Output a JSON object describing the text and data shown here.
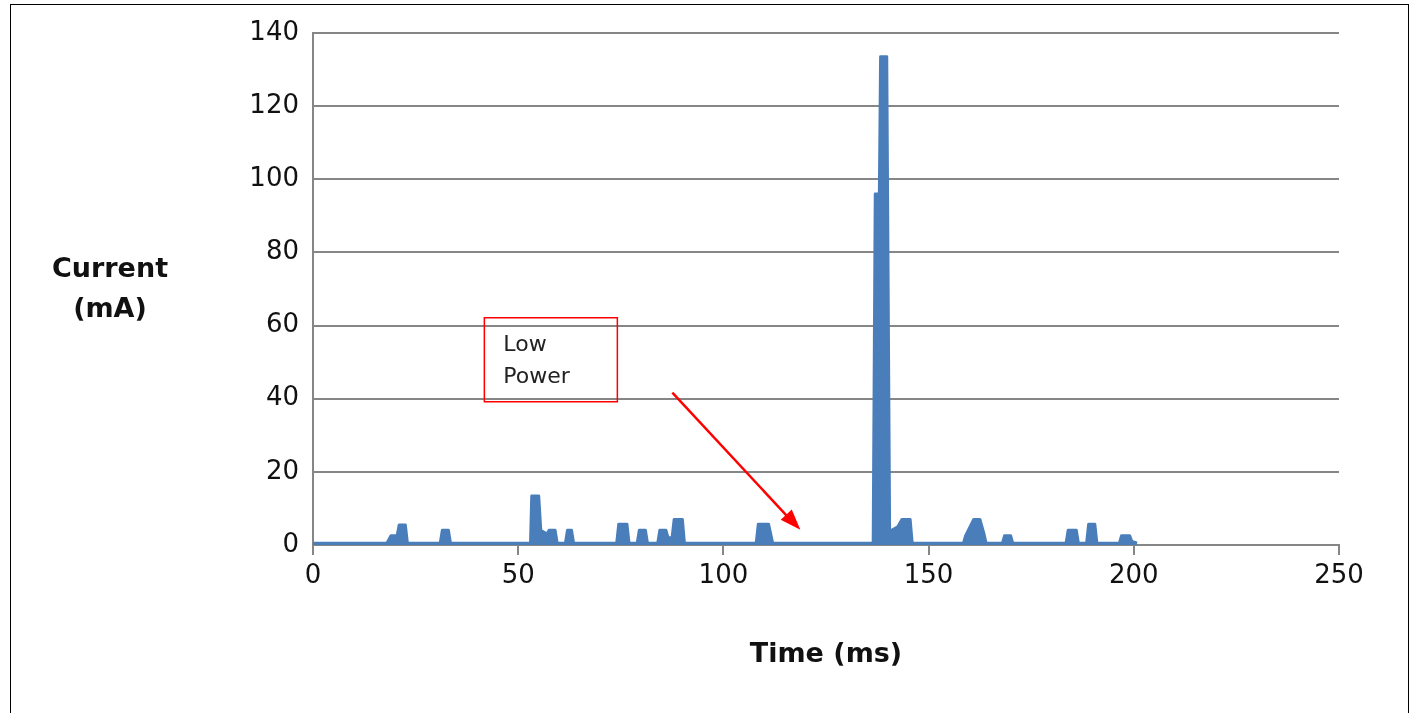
{
  "chart_data": {
    "type": "area",
    "xlabel": "Time (ms)",
    "ylabel": "Current (mA)",
    "xlim": [
      0,
      250
    ],
    "xticks": [
      0,
      50,
      100,
      150,
      200,
      250
    ],
    "ylim": [
      0,
      140
    ],
    "yticks": [
      0,
      20,
      40,
      60,
      80,
      100,
      120,
      140
    ],
    "grid": "y",
    "legend": false,
    "marker": "none",
    "annotations": [
      "Low Power"
    ],
    "series": [
      {
        "color": "#4a7ebb",
        "x": [
          0,
          18,
          19,
          20.5,
          21,
          22.5,
          23,
          31,
          31.5,
          33,
          33.5,
          53,
          53.3,
          55,
          55.5,
          57,
          57.5,
          59,
          59.5,
          61.5,
          62,
          63,
          63.5,
          74,
          74.5,
          76.5,
          77,
          79,
          79.5,
          81,
          81.5,
          84,
          84.5,
          86,
          86.5,
          87.5,
          88,
          90,
          90.5,
          108,
          108.5,
          111,
          112,
          136.5,
          137,
          138,
          138.3,
          139.8,
          140.5,
          141,
          142.5,
          143.5,
          145.5,
          146,
          158.5,
          159,
          161,
          162.5,
          163.5,
          164,
          168,
          168.5,
          170,
          170.5,
          183.5,
          184,
          186,
          186.5,
          188.5,
          189,
          190.5,
          191,
          196.5,
          197,
          199,
          199.5,
          200.8
        ],
        "values": [
          0.5,
          0.5,
          2.5,
          2.5,
          5.5,
          5.5,
          0.5,
          0.5,
          4,
          4,
          0.5,
          0.5,
          13.4,
          13.4,
          4,
          3,
          4,
          4,
          0.5,
          0.5,
          4,
          4,
          0.5,
          0.5,
          5.7,
          5.7,
          0.5,
          0.5,
          4,
          4,
          0.5,
          0.5,
          4,
          4,
          2,
          2,
          7,
          7,
          0.5,
          0.5,
          5.7,
          5.7,
          0.5,
          0.5,
          96,
          96,
          133.5,
          133.5,
          4,
          4,
          5,
          7,
          7,
          0.5,
          0.5,
          2.5,
          7,
          7,
          3,
          0.5,
          0.5,
          2.5,
          2.5,
          0.5,
          0.5,
          4,
          4,
          0.5,
          0.5,
          5.7,
          5.7,
          0.5,
          0.5,
          2.5,
          2.5,
          1,
          0.5
        ]
      }
    ]
  }
}
